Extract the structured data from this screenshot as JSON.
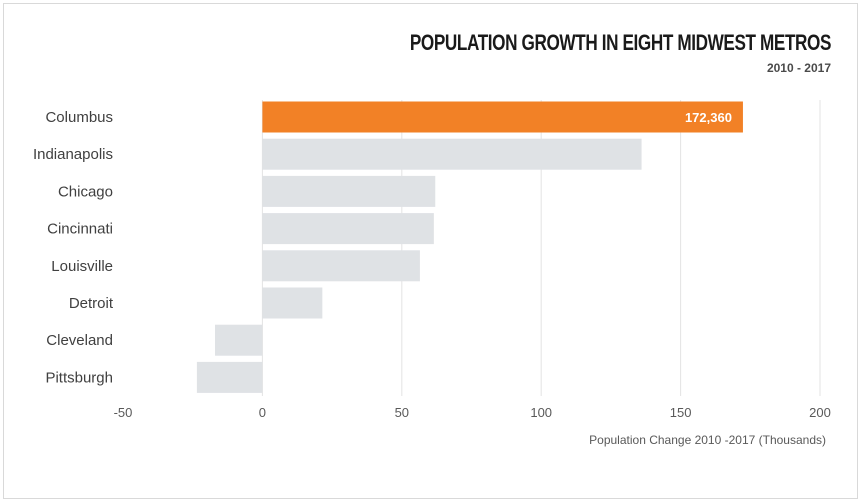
{
  "chart_data": {
    "type": "bar",
    "orientation": "horizontal",
    "title": "POPULATION GROWTH IN EIGHT MIDWEST METROS",
    "subtitle": "2010 - 2017",
    "xlabel": "Population Change 2010 -2017 (Thousands)",
    "ylabel": "",
    "categories": [
      "Columbus",
      "Indianapolis",
      "Chicago",
      "Cincinnati",
      "Louisville",
      "Detroit",
      "Cleveland",
      "Pittsburgh"
    ],
    "values": [
      172.36,
      136,
      62,
      61.5,
      56.5,
      21.5,
      -17,
      -23.5
    ],
    "data_labels": [
      "172,360",
      "",
      "",
      "",
      "",
      "",
      "",
      ""
    ],
    "xlim": [
      -50,
      200
    ],
    "xticks": [
      "-50",
      "0",
      "50",
      "100",
      "150",
      "200"
    ],
    "grid": true,
    "colors": {
      "highlight": "#f28126",
      "default": "#dfe2e5",
      "grid": "#e3e3e3"
    },
    "highlight_index": 0
  }
}
